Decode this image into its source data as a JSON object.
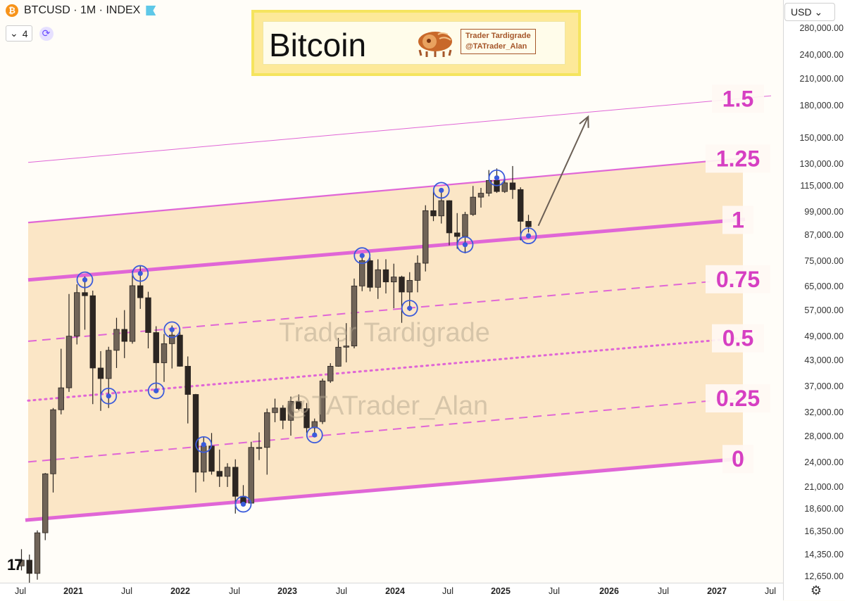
{
  "header": {
    "symbol_line": "BTCUSD · 1M · INDEX",
    "btc_glyph": "₿",
    "indicator_count": "4",
    "chevron": "⌄",
    "sync_glyph": "⟳"
  },
  "banner": {
    "title": "Bitcoin",
    "tag_line1": "Trader Tardigrade",
    "tag_line2": "@TATrader_Alan"
  },
  "watermarks": [
    "Trader Tardigrade",
    "@TATrader_Alan"
  ],
  "price_axis": {
    "currency": "USD ⌄",
    "ticks": [
      "280,000.00",
      "240,000.00",
      "210,000.00",
      "180,000.00",
      "150,000.00",
      "130,000.00",
      "115,000.00",
      "99,000.00",
      "87,000.00",
      "75,000.00",
      "65,000.00",
      "57,000.00",
      "49,000.00",
      "43,000.00",
      "37,000.00",
      "32,000.00",
      "28,000.00",
      "24,000.00",
      "21,000.00",
      "18,600.00",
      "16,350.00",
      "14,350.00",
      "12,650.00"
    ]
  },
  "time_axis": {
    "ticks": [
      "Jul",
      "2021",
      "Jul",
      "2022",
      "Jul",
      "2023",
      "Jul",
      "2024",
      "Jul",
      "2025",
      "Jul",
      "2026",
      "Jul",
      "2027",
      "Jul"
    ],
    "bold_years": [
      "2021",
      "2022",
      "2023",
      "2024",
      "2025",
      "2026",
      "2027"
    ]
  },
  "brand": {
    "logo_text": "17",
    "settings_glyph": "⚙"
  },
  "colors": {
    "channel_fill": "#fbe6c6",
    "channel_line": "#e066d6",
    "label": "#d63fc2",
    "candle_up": "#706458",
    "candle_down": "#2c2622",
    "circle": "#3b5bdb",
    "arrow": "#6b5f55"
  },
  "chart_data": {
    "type": "candlestick",
    "title": "Bitcoin",
    "interval": "1M",
    "y_scale": "log",
    "ylim": [
      12000,
      300000
    ],
    "levels": [
      {
        "name": "0",
        "style": "solid-thick",
        "start": {
          "x": "2020-07",
          "y": 14800
        },
        "end": {
          "x": "2026-12",
          "y": 20300
        }
      },
      {
        "name": "0.25",
        "style": "dashed",
        "start": {
          "x": "2020-07",
          "y": 21000
        },
        "end": {
          "x": "2026-12",
          "y": 29200
        }
      },
      {
        "name": "0.5",
        "style": "dotted",
        "start": {
          "x": "2020-07",
          "y": 30400
        },
        "end": {
          "x": "2026-12",
          "y": 42000
        }
      },
      {
        "name": "0.75",
        "style": "dashed",
        "start": {
          "x": "2020-07",
          "y": 43500
        },
        "end": {
          "x": "2026-12",
          "y": 60000
        }
      },
      {
        "name": "1",
        "style": "solid-thick",
        "start": {
          "x": "2020-07",
          "y": 63000
        },
        "end": {
          "x": "2026-12",
          "y": 86000
        }
      },
      {
        "name": "1.25",
        "style": "solid",
        "start": {
          "x": "2020-07",
          "y": 89000
        },
        "end": {
          "x": "2026-12",
          "y": 124000
        }
      },
      {
        "name": "1.5",
        "style": "thin",
        "start": {
          "x": "2020-07",
          "y": 128000
        },
        "end": {
          "x": "2026-12",
          "y": 178000
        }
      }
    ],
    "candles": [
      {
        "t": "2020-08",
        "o": 11300,
        "h": 12500,
        "l": 11000,
        "c": 11700
      },
      {
        "t": "2020-09",
        "o": 11700,
        "h": 12100,
        "l": 9900,
        "c": 10800
      },
      {
        "t": "2020-10",
        "o": 10800,
        "h": 14000,
        "l": 10400,
        "c": 13800
      },
      {
        "t": "2020-11",
        "o": 13800,
        "h": 19800,
        "l": 13200,
        "c": 19700
      },
      {
        "t": "2020-12",
        "o": 19700,
        "h": 29300,
        "l": 17600,
        "c": 29000
      },
      {
        "t": "2021-01",
        "o": 29000,
        "h": 41900,
        "l": 28200,
        "c": 33100
      },
      {
        "t": "2021-02",
        "o": 33100,
        "h": 58300,
        "l": 32300,
        "c": 45200
      },
      {
        "t": "2021-03",
        "o": 45200,
        "h": 61800,
        "l": 43000,
        "c": 58800
      },
      {
        "t": "2021-04",
        "o": 58800,
        "h": 64800,
        "l": 47000,
        "c": 57700
      },
      {
        "t": "2021-05",
        "o": 57700,
        "h": 59500,
        "l": 30000,
        "c": 37300
      },
      {
        "t": "2021-06",
        "o": 37300,
        "h": 41300,
        "l": 28800,
        "c": 35000
      },
      {
        "t": "2021-07",
        "o": 35000,
        "h": 42400,
        "l": 29300,
        "c": 41500
      },
      {
        "t": "2021-08",
        "o": 41500,
        "h": 50500,
        "l": 37300,
        "c": 47100
      },
      {
        "t": "2021-09",
        "o": 47100,
        "h": 52900,
        "l": 39600,
        "c": 43800
      },
      {
        "t": "2021-10",
        "o": 43800,
        "h": 67000,
        "l": 43200,
        "c": 61300
      },
      {
        "t": "2021-11",
        "o": 61300,
        "h": 69000,
        "l": 53300,
        "c": 57000
      },
      {
        "t": "2021-12",
        "o": 57000,
        "h": 59100,
        "l": 42000,
        "c": 46200
      },
      {
        "t": "2022-01",
        "o": 46200,
        "h": 48000,
        "l": 33000,
        "c": 38500
      },
      {
        "t": "2022-02",
        "o": 38500,
        "h": 45800,
        "l": 34300,
        "c": 43200
      },
      {
        "t": "2022-03",
        "o": 43200,
        "h": 48200,
        "l": 37200,
        "c": 45500
      },
      {
        "t": "2022-04",
        "o": 45500,
        "h": 47400,
        "l": 37600,
        "c": 37700
      },
      {
        "t": "2022-05",
        "o": 37700,
        "h": 40000,
        "l": 26700,
        "c": 31800
      },
      {
        "t": "2022-06",
        "o": 31800,
        "h": 31900,
        "l": 17600,
        "c": 19900
      },
      {
        "t": "2022-07",
        "o": 19900,
        "h": 24700,
        "l": 18800,
        "c": 23300
      },
      {
        "t": "2022-08",
        "o": 23300,
        "h": 25200,
        "l": 19600,
        "c": 20000
      },
      {
        "t": "2022-09",
        "o": 20000,
        "h": 22800,
        "l": 18200,
        "c": 19400
      },
      {
        "t": "2022-10",
        "o": 19400,
        "h": 21000,
        "l": 18200,
        "c": 20500
      },
      {
        "t": "2022-11",
        "o": 20500,
        "h": 21500,
        "l": 15500,
        "c": 17200
      },
      {
        "t": "2022-12",
        "o": 17200,
        "h": 18400,
        "l": 16300,
        "c": 16500
      },
      {
        "t": "2023-01",
        "o": 16500,
        "h": 23900,
        "l": 16500,
        "c": 23100
      },
      {
        "t": "2023-02",
        "o": 23100,
        "h": 25300,
        "l": 21400,
        "c": 23100
      },
      {
        "t": "2023-03",
        "o": 23100,
        "h": 29200,
        "l": 19600,
        "c": 28500
      },
      {
        "t": "2023-04",
        "o": 28500,
        "h": 31000,
        "l": 26900,
        "c": 29300
      },
      {
        "t": "2023-05",
        "o": 29300,
        "h": 29800,
        "l": 25800,
        "c": 27200
      },
      {
        "t": "2023-06",
        "o": 27200,
        "h": 31400,
        "l": 24800,
        "c": 30500
      },
      {
        "t": "2023-07",
        "o": 30500,
        "h": 31800,
        "l": 28900,
        "c": 29200
      },
      {
        "t": "2023-08",
        "o": 29200,
        "h": 30200,
        "l": 25200,
        "c": 26000
      },
      {
        "t": "2023-09",
        "o": 26000,
        "h": 27500,
        "l": 24900,
        "c": 27000
      },
      {
        "t": "2023-10",
        "o": 27000,
        "h": 35000,
        "l": 26600,
        "c": 34500
      },
      {
        "t": "2023-11",
        "o": 34500,
        "h": 38400,
        "l": 34100,
        "c": 37700
      },
      {
        "t": "2023-12",
        "o": 37700,
        "h": 44700,
        "l": 37600,
        "c": 42300
      },
      {
        "t": "2024-01",
        "o": 42300,
        "h": 48900,
        "l": 38600,
        "c": 42600
      },
      {
        "t": "2024-02",
        "o": 42600,
        "h": 64000,
        "l": 42000,
        "c": 61200
      },
      {
        "t": "2024-03",
        "o": 61200,
        "h": 73800,
        "l": 59300,
        "c": 71300
      },
      {
        "t": "2024-04",
        "o": 71300,
        "h": 72800,
        "l": 59200,
        "c": 60700
      },
      {
        "t": "2024-05",
        "o": 60700,
        "h": 71900,
        "l": 56600,
        "c": 67500
      },
      {
        "t": "2024-06",
        "o": 67500,
        "h": 71900,
        "l": 58500,
        "c": 62700
      },
      {
        "t": "2024-07",
        "o": 62700,
        "h": 70000,
        "l": 53500,
        "c": 64600
      },
      {
        "t": "2024-08",
        "o": 64600,
        "h": 65100,
        "l": 49000,
        "c": 59000
      },
      {
        "t": "2024-09",
        "o": 59000,
        "h": 66500,
        "l": 52600,
        "c": 63300
      },
      {
        "t": "2024-10",
        "o": 63300,
        "h": 73600,
        "l": 58900,
        "c": 70200
      },
      {
        "t": "2024-11",
        "o": 70200,
        "h": 99600,
        "l": 66800,
        "c": 96400
      },
      {
        "t": "2024-12",
        "o": 96400,
        "h": 108300,
        "l": 90500,
        "c": 93400
      },
      {
        "t": "2025-01",
        "o": 93400,
        "h": 109100,
        "l": 89200,
        "c": 102400
      },
      {
        "t": "2025-02",
        "o": 102400,
        "h": 102700,
        "l": 78200,
        "c": 84300
      },
      {
        "t": "2025-03",
        "o": 84300,
        "h": 95000,
        "l": 76600,
        "c": 82500
      },
      {
        "t": "2025-04",
        "o": 82500,
        "h": 95700,
        "l": 74500,
        "c": 94200
      },
      {
        "t": "2025-05",
        "o": 94200,
        "h": 111900,
        "l": 93400,
        "c": 104600
      },
      {
        "t": "2025-06",
        "o": 104600,
        "h": 110600,
        "l": 98200,
        "c": 107100
      },
      {
        "t": "2025-07",
        "o": 107100,
        "h": 123200,
        "l": 105100,
        "c": 115700
      },
      {
        "t": "2025-08",
        "o": 115700,
        "h": 124400,
        "l": 107300,
        "c": 108200
      },
      {
        "t": "2025-09",
        "o": 108200,
        "h": 117900,
        "l": 107300,
        "c": 114000
      },
      {
        "t": "2025-10",
        "o": 114000,
        "h": 126200,
        "l": 103500,
        "c": 109500
      },
      {
        "t": "2025-11",
        "o": 109500,
        "h": 111000,
        "l": 80600,
        "c": 90400
      },
      {
        "t": "2025-12",
        "o": 90400,
        "h": 94000,
        "l": 84500,
        "c": 87500
      }
    ],
    "touch_markers": [
      {
        "t": "2021-04",
        "y": 63500
      },
      {
        "t": "2021-07",
        "y": 31500
      },
      {
        "t": "2021-11",
        "y": 66000
      },
      {
        "t": "2022-01",
        "y": 32500
      },
      {
        "t": "2022-03",
        "y": 47000
      },
      {
        "t": "2022-07",
        "y": 23500
      },
      {
        "t": "2022-12",
        "y": 16400
      },
      {
        "t": "2023-09",
        "y": 24900
      },
      {
        "t": "2024-03",
        "y": 73500
      },
      {
        "t": "2024-09",
        "y": 53500
      },
      {
        "t": "2025-01",
        "y": 109000
      },
      {
        "t": "2025-04",
        "y": 78500
      },
      {
        "t": "2025-08",
        "y": 117500
      },
      {
        "t": "2025-12",
        "y": 82800
      }
    ],
    "projection_arrow": {
      "from": {
        "x": "2025-12",
        "y": 88000
      },
      "to": {
        "x": "2026-07",
        "y": 170000
      }
    }
  }
}
